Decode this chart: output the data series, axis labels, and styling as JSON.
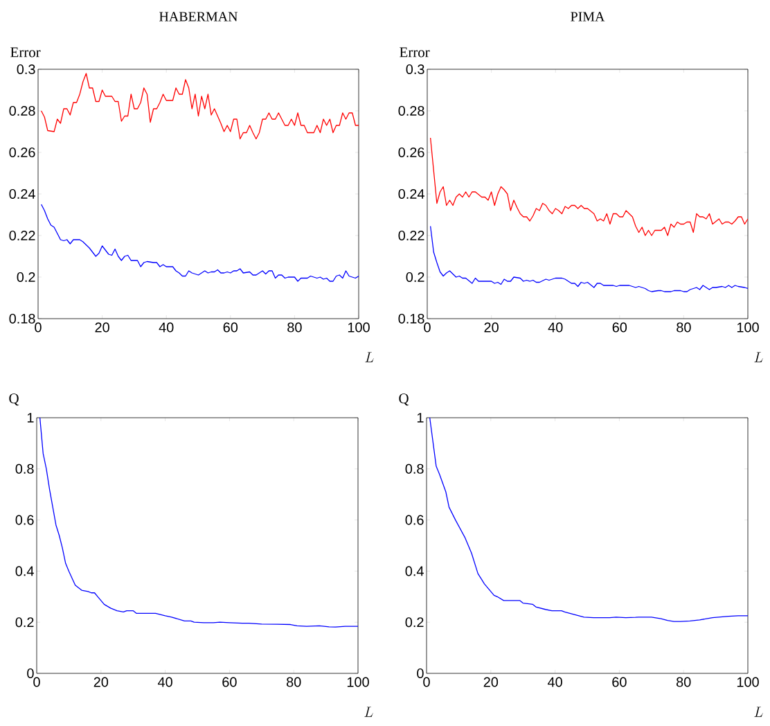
{
  "chart_data": [
    {
      "type": "line",
      "title": "HABERMAN",
      "ylabel": "Error",
      "xlabel": "L",
      "xlim": [
        0,
        100
      ],
      "ylim": [
        0.18,
        0.3
      ],
      "xticks": [
        0,
        20,
        40,
        60,
        80,
        100
      ],
      "yticks": [
        0.18,
        0.2,
        0.22,
        0.24,
        0.26,
        0.28,
        0.3
      ],
      "series": [
        {
          "color": "#ff0000",
          "x": [
            1,
            2,
            3,
            5,
            6,
            7,
            8,
            9,
            10,
            11,
            12,
            13,
            14,
            15,
            16,
            17,
            18,
            19,
            20,
            21,
            23,
            24,
            25,
            26,
            27,
            28,
            29,
            30,
            31,
            32,
            33,
            34,
            35,
            36,
            37,
            38,
            39,
            40,
            42,
            43,
            44,
            45,
            46,
            47,
            48,
            49,
            50,
            51,
            52,
            53,
            54,
            55,
            56,
            57,
            58,
            59,
            60,
            61,
            62,
            63,
            64,
            65,
            66,
            67,
            68,
            69,
            70,
            71,
            72,
            73,
            74,
            75,
            76,
            77,
            78,
            79,
            80,
            81,
            82,
            83,
            84,
            86,
            87,
            88,
            89,
            90,
            91,
            92,
            93,
            94,
            95,
            96,
            97,
            98,
            99,
            100
          ],
          "values": [
            0.28,
            0.277,
            0.2705,
            0.27,
            0.276,
            0.274,
            0.281,
            0.281,
            0.278,
            0.284,
            0.284,
            0.288,
            0.294,
            0.298,
            0.291,
            0.291,
            0.2845,
            0.2845,
            0.29,
            0.287,
            0.287,
            0.2845,
            0.2845,
            0.275,
            0.2775,
            0.2775,
            0.288,
            0.281,
            0.281,
            0.284,
            0.291,
            0.288,
            0.2745,
            0.281,
            0.281,
            0.284,
            0.288,
            0.285,
            0.285,
            0.291,
            0.288,
            0.288,
            0.295,
            0.291,
            0.281,
            0.288,
            0.2775,
            0.287,
            0.281,
            0.288,
            0.278,
            0.281,
            0.2775,
            0.274,
            0.27,
            0.273,
            0.27,
            0.276,
            0.276,
            0.2665,
            0.2695,
            0.2695,
            0.273,
            0.2695,
            0.2665,
            0.2695,
            0.276,
            0.276,
            0.279,
            0.276,
            0.276,
            0.279,
            0.276,
            0.273,
            0.273,
            0.276,
            0.273,
            0.279,
            0.273,
            0.273,
            0.2695,
            0.2695,
            0.273,
            0.2695,
            0.276,
            0.273,
            0.276,
            0.2695,
            0.273,
            0.273,
            0.279,
            0.276,
            0.279,
            0.279,
            0.273,
            0.273
          ]
        },
        {
          "color": "#0000ff",
          "x": [
            1,
            2,
            3,
            4,
            5,
            6,
            7,
            8,
            9,
            10,
            11,
            12,
            13,
            14,
            15,
            16,
            17,
            18,
            19,
            20,
            21,
            22,
            23,
            24,
            25,
            26,
            27,
            28,
            29,
            31,
            32,
            33,
            34,
            36,
            37,
            38,
            39,
            40,
            42,
            43,
            44,
            45,
            46,
            47,
            48,
            50,
            51,
            52,
            53,
            54,
            55,
            56,
            57,
            58,
            59,
            60,
            61,
            62,
            63,
            64,
            66,
            67,
            68,
            69,
            70,
            71,
            72,
            73,
            74,
            75,
            76,
            77,
            78,
            80,
            81,
            82,
            84,
            85,
            87,
            88,
            89,
            90,
            91,
            92,
            93,
            94,
            95,
            96,
            97,
            98,
            99,
            100
          ],
          "values": [
            0.235,
            0.232,
            0.228,
            0.225,
            0.224,
            0.221,
            0.218,
            0.2175,
            0.218,
            0.216,
            0.218,
            0.218,
            0.218,
            0.217,
            0.2155,
            0.214,
            0.212,
            0.21,
            0.2115,
            0.215,
            0.213,
            0.211,
            0.2105,
            0.2135,
            0.21,
            0.208,
            0.21,
            0.2105,
            0.208,
            0.208,
            0.205,
            0.207,
            0.2075,
            0.207,
            0.207,
            0.205,
            0.206,
            0.205,
            0.205,
            0.203,
            0.202,
            0.2005,
            0.2005,
            0.203,
            0.202,
            0.201,
            0.202,
            0.203,
            0.202,
            0.2025,
            0.2025,
            0.2035,
            0.202,
            0.202,
            0.2025,
            0.202,
            0.203,
            0.203,
            0.204,
            0.202,
            0.2025,
            0.201,
            0.201,
            0.202,
            0.203,
            0.2015,
            0.203,
            0.203,
            0.1995,
            0.201,
            0.201,
            0.1995,
            0.2,
            0.2,
            0.198,
            0.1995,
            0.1995,
            0.2005,
            0.1995,
            0.2,
            0.199,
            0.1995,
            0.198,
            0.198,
            0.2005,
            0.201,
            0.1995,
            0.203,
            0.2005,
            0.2,
            0.1995,
            0.2005
          ]
        }
      ]
    },
    {
      "type": "line",
      "title": "PIMA",
      "ylabel": "Error",
      "xlabel": "L",
      "xlim": [
        0,
        100
      ],
      "ylim": [
        0.18,
        0.3
      ],
      "xticks": [
        0,
        20,
        40,
        60,
        80,
        100
      ],
      "yticks": [
        0.18,
        0.2,
        0.22,
        0.24,
        0.26,
        0.28,
        0.3
      ],
      "series": [
        {
          "color": "#ff0000",
          "x": [
            1,
            3,
            4,
            5,
            6,
            7,
            8,
            9,
            10,
            11,
            12,
            13,
            14,
            15,
            17,
            18,
            19,
            20,
            21,
            22,
            23,
            24,
            25,
            26,
            27,
            28,
            29,
            30,
            31,
            32,
            33,
            34,
            35,
            36,
            37,
            38,
            39,
            40,
            41,
            42,
            43,
            44,
            45,
            46,
            47,
            48,
            49,
            50,
            52,
            53,
            54,
            55,
            56,
            57,
            58,
            59,
            60,
            61,
            62,
            64,
            65,
            66,
            67,
            68,
            69,
            70,
            71,
            73,
            74,
            75,
            76,
            77,
            78,
            79,
            80,
            81,
            82,
            83,
            84,
            85,
            86,
            87,
            88,
            89,
            91,
            92,
            93,
            94,
            95,
            96,
            97,
            98,
            99,
            100
          ],
          "values": [
            0.267,
            0.2355,
            0.241,
            0.2435,
            0.2345,
            0.237,
            0.2345,
            0.2385,
            0.24,
            0.2385,
            0.241,
            0.2385,
            0.241,
            0.241,
            0.2385,
            0.2385,
            0.237,
            0.241,
            0.2345,
            0.24,
            0.2435,
            0.242,
            0.24,
            0.232,
            0.237,
            0.2335,
            0.2305,
            0.229,
            0.229,
            0.227,
            0.2295,
            0.233,
            0.232,
            0.2355,
            0.2345,
            0.232,
            0.2305,
            0.233,
            0.232,
            0.2305,
            0.234,
            0.233,
            0.2345,
            0.2345,
            0.233,
            0.2345,
            0.233,
            0.233,
            0.2305,
            0.227,
            0.228,
            0.227,
            0.2305,
            0.2255,
            0.2305,
            0.2305,
            0.229,
            0.229,
            0.232,
            0.229,
            0.2245,
            0.2215,
            0.224,
            0.22,
            0.2225,
            0.22,
            0.2225,
            0.2225,
            0.224,
            0.22,
            0.2255,
            0.224,
            0.2265,
            0.2255,
            0.2255,
            0.2265,
            0.2265,
            0.2215,
            0.2305,
            0.229,
            0.229,
            0.228,
            0.2305,
            0.2255,
            0.228,
            0.2255,
            0.2265,
            0.2265,
            0.2255,
            0.227,
            0.229,
            0.229,
            0.2255,
            0.228
          ]
        },
        {
          "color": "#0000ff",
          "x": [
            1,
            2,
            3,
            4,
            5,
            6,
            7,
            8,
            9,
            10,
            11,
            12,
            14,
            15,
            16,
            18,
            19,
            20,
            21,
            22,
            23,
            24,
            25,
            26,
            27,
            29,
            30,
            31,
            32,
            33,
            34,
            35,
            37,
            38,
            39,
            40,
            42,
            43,
            45,
            46,
            47,
            48,
            49,
            50,
            52,
            53,
            54,
            55,
            57,
            58,
            59,
            60,
            62,
            63,
            64,
            65,
            66,
            67,
            68,
            69,
            70,
            72,
            73,
            74,
            75,
            76,
            77,
            79,
            80,
            81,
            82,
            83,
            84,
            85,
            86,
            87,
            88,
            89,
            90,
            92,
            93,
            94,
            95,
            96,
            97,
            99,
            100
          ],
          "values": [
            0.2245,
            0.212,
            0.207,
            0.2025,
            0.2005,
            0.202,
            0.203,
            0.2015,
            0.2,
            0.2005,
            0.1995,
            0.1995,
            0.197,
            0.1995,
            0.198,
            0.198,
            0.198,
            0.198,
            0.197,
            0.1975,
            0.1965,
            0.199,
            0.198,
            0.198,
            0.2,
            0.1995,
            0.198,
            0.1985,
            0.198,
            0.1985,
            0.1975,
            0.1975,
            0.199,
            0.1985,
            0.199,
            0.1995,
            0.1995,
            0.199,
            0.197,
            0.197,
            0.1955,
            0.1975,
            0.197,
            0.1975,
            0.195,
            0.197,
            0.197,
            0.196,
            0.196,
            0.196,
            0.1955,
            0.196,
            0.196,
            0.196,
            0.1955,
            0.195,
            0.1955,
            0.195,
            0.1945,
            0.1935,
            0.193,
            0.1935,
            0.1935,
            0.193,
            0.193,
            0.193,
            0.1935,
            0.1935,
            0.193,
            0.193,
            0.194,
            0.1945,
            0.195,
            0.194,
            0.196,
            0.195,
            0.194,
            0.195,
            0.195,
            0.1955,
            0.195,
            0.196,
            0.195,
            0.196,
            0.1955,
            0.195,
            0.1945
          ]
        }
      ]
    },
    {
      "type": "line",
      "ylabel": "Q",
      "xlabel": "L",
      "xlim": [
        0,
        100
      ],
      "ylim": [
        0,
        1
      ],
      "xticks": [
        0,
        20,
        40,
        60,
        80,
        100
      ],
      "yticks": [
        0,
        0.2,
        0.4,
        0.6,
        0.8,
        1
      ],
      "series": [
        {
          "color": "#0000ff",
          "x": [
            1,
            2,
            3,
            4,
            5,
            6,
            7,
            8,
            9,
            10,
            12,
            14,
            16,
            17,
            18,
            19,
            20,
            21,
            23,
            25,
            27,
            28,
            30,
            31,
            33,
            34,
            37,
            40,
            42,
            46,
            48,
            49,
            52,
            55,
            57,
            60,
            64,
            66,
            70,
            75,
            79,
            81,
            84,
            88,
            91,
            93,
            96,
            100
          ],
          "values": [
            1.0,
            0.86,
            0.8,
            0.72,
            0.65,
            0.58,
            0.54,
            0.49,
            0.43,
            0.4,
            0.345,
            0.325,
            0.32,
            0.315,
            0.315,
            0.3,
            0.285,
            0.27,
            0.255,
            0.245,
            0.24,
            0.245,
            0.245,
            0.235,
            0.235,
            0.235,
            0.235,
            0.225,
            0.22,
            0.205,
            0.205,
            0.2,
            0.198,
            0.198,
            0.2,
            0.198,
            0.196,
            0.196,
            0.193,
            0.192,
            0.191,
            0.186,
            0.184,
            0.186,
            0.182,
            0.181,
            0.184,
            0.184
          ]
        }
      ]
    },
    {
      "type": "line",
      "ylabel": "Q",
      "xlabel": "L",
      "xlim": [
        0,
        100
      ],
      "ylim": [
        0,
        1
      ],
      "xticks": [
        0,
        20,
        40,
        60,
        80,
        100
      ],
      "yticks": [
        0,
        0.2,
        0.4,
        0.6,
        0.8,
        1
      ],
      "series": [
        {
          "color": "#0000ff",
          "x": [
            1,
            3,
            4,
            6,
            7,
            9,
            12,
            14,
            15,
            16,
            17,
            18,
            20,
            21,
            22,
            24,
            27,
            29,
            30,
            33,
            34,
            37,
            39,
            42,
            43,
            46,
            49,
            52,
            57,
            59,
            62,
            65,
            66,
            70,
            73,
            75,
            77,
            79,
            82,
            85,
            89,
            94,
            97,
            100
          ],
          "values": [
            1.0,
            0.81,
            0.78,
            0.71,
            0.65,
            0.6,
            0.53,
            0.47,
            0.43,
            0.39,
            0.37,
            0.35,
            0.32,
            0.305,
            0.3,
            0.285,
            0.285,
            0.285,
            0.275,
            0.27,
            0.26,
            0.25,
            0.245,
            0.245,
            0.24,
            0.23,
            0.22,
            0.218,
            0.218,
            0.22,
            0.218,
            0.219,
            0.22,
            0.22,
            0.214,
            0.207,
            0.203,
            0.203,
            0.205,
            0.209,
            0.218,
            0.223,
            0.225,
            0.225
          ]
        }
      ]
    }
  ]
}
